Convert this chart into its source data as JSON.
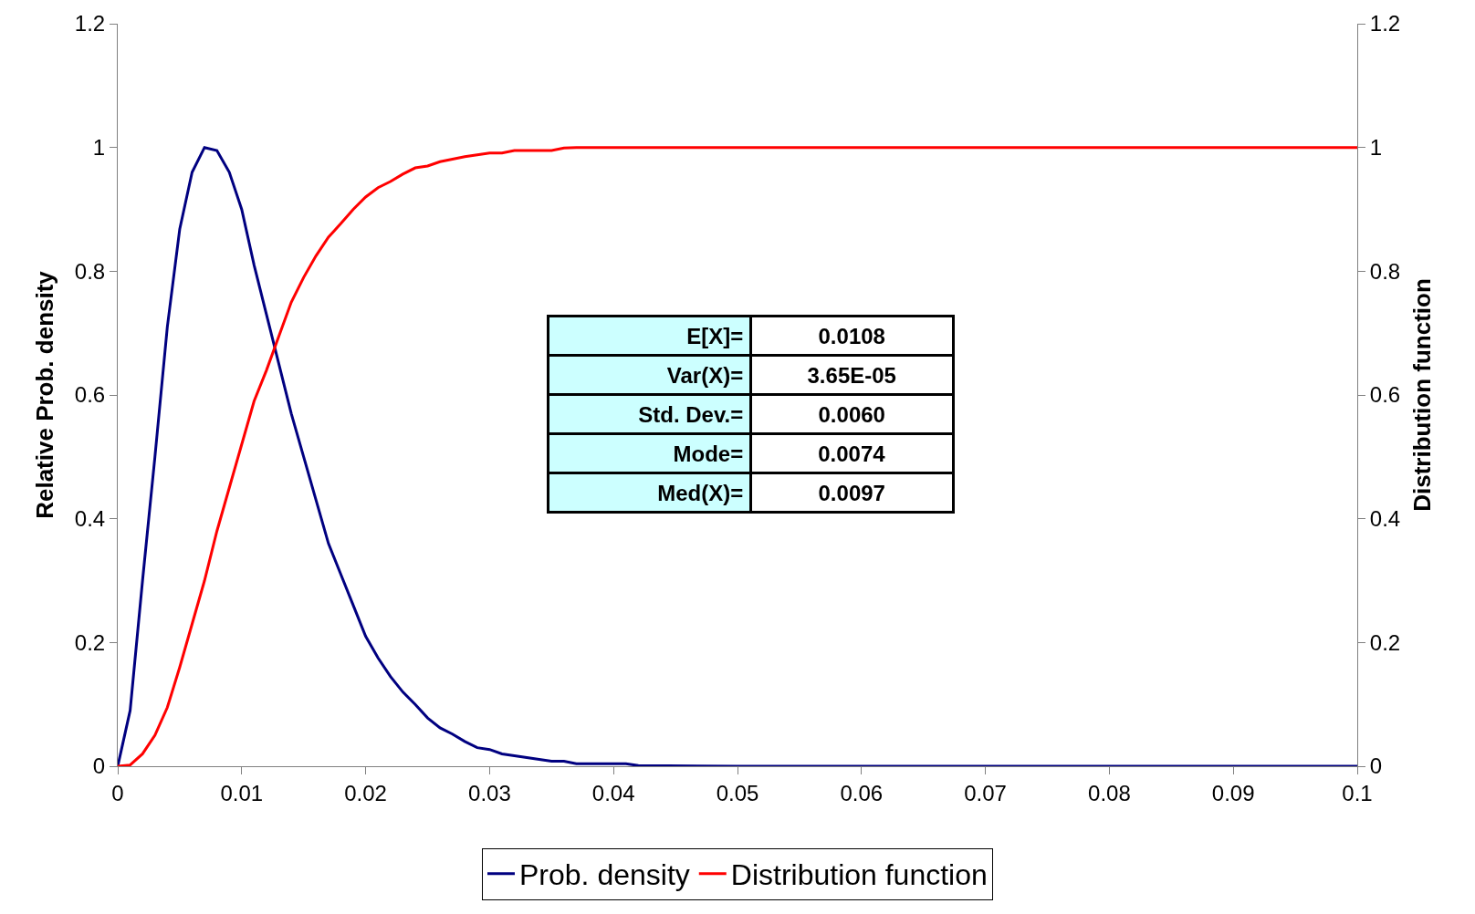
{
  "chart_data": {
    "type": "line",
    "xlabel": null,
    "ylabel": "Relative Prob. density",
    "y2label": "Distribution function",
    "x": [
      0,
      0.001,
      0.002,
      0.003,
      0.004,
      0.005,
      0.006,
      0.007,
      0.008,
      0.009,
      0.01,
      0.011,
      0.012,
      0.013,
      0.014,
      0.015,
      0.016,
      0.017,
      0.018,
      0.019,
      0.02,
      0.021,
      0.022,
      0.023,
      0.024,
      0.025,
      0.026,
      0.027,
      0.028,
      0.029,
      0.03,
      0.031,
      0.032,
      0.033,
      0.034,
      0.035,
      0.036,
      0.037,
      0.038,
      0.039,
      0.04,
      0.041,
      0.042,
      0.05,
      0.06,
      0.07,
      0.08,
      0.09,
      0.1
    ],
    "series": [
      {
        "name": "Prob. density",
        "color": "#000080",
        "values": [
          0,
          0.09,
          0.3,
          0.5,
          0.71,
          0.868,
          0.96,
          1.0,
          0.995,
          0.96,
          0.9,
          0.81,
          0.73,
          0.65,
          0.57,
          0.5,
          0.43,
          0.36,
          0.31,
          0.26,
          0.21,
          0.175,
          0.145,
          0.12,
          0.1,
          0.078,
          0.062,
          0.052,
          0.04,
          0.03,
          0.027,
          0.02,
          0.017,
          0.014,
          0.011,
          0.008,
          0.008,
          0.004,
          0.004,
          0.004,
          0.004,
          0.004,
          0.001,
          0,
          0,
          0,
          0,
          0,
          0
        ]
      },
      {
        "name": "Distribution function",
        "color": "#ff0000",
        "axis": "y2",
        "values": [
          0,
          0.002,
          0.02,
          0.05,
          0.095,
          0.16,
          0.23,
          0.3,
          0.38,
          0.45,
          0.52,
          0.59,
          0.64,
          0.695,
          0.75,
          0.79,
          0.825,
          0.855,
          0.877,
          0.9,
          0.92,
          0.935,
          0.945,
          0.957,
          0.967,
          0.97,
          0.977,
          0.981,
          0.985,
          0.988,
          0.991,
          0.991,
          0.995,
          0.995,
          0.995,
          0.995,
          0.999,
          1,
          1,
          1,
          1,
          1,
          1,
          1,
          1,
          1,
          1,
          1,
          1
        ]
      }
    ],
    "xlim": [
      0,
      0.1
    ],
    "xticks": [
      0,
      0.01,
      0.02,
      0.03,
      0.04,
      0.05,
      0.06,
      0.07,
      0.08,
      0.09,
      0.1
    ],
    "ylim": [
      0,
      1.2
    ],
    "yticks": [
      0,
      0.2,
      0.4,
      0.6,
      0.8,
      1,
      1.2
    ],
    "y2lim": [
      0,
      1.2
    ],
    "y2ticks": [
      0,
      0.2,
      0.4,
      0.6,
      0.8,
      1,
      1.2
    ],
    "annotations": [
      "E[X]=",
      "0.0108",
      "Var(X)=",
      "3.65E-05",
      "Std. Dev.=",
      "0.0060",
      "Mode=",
      "0.0074",
      "Med(X)=",
      "0.0097"
    ],
    "legend": "bottom",
    "grid": false,
    "marker": "none",
    "line_style": "solid"
  }
}
